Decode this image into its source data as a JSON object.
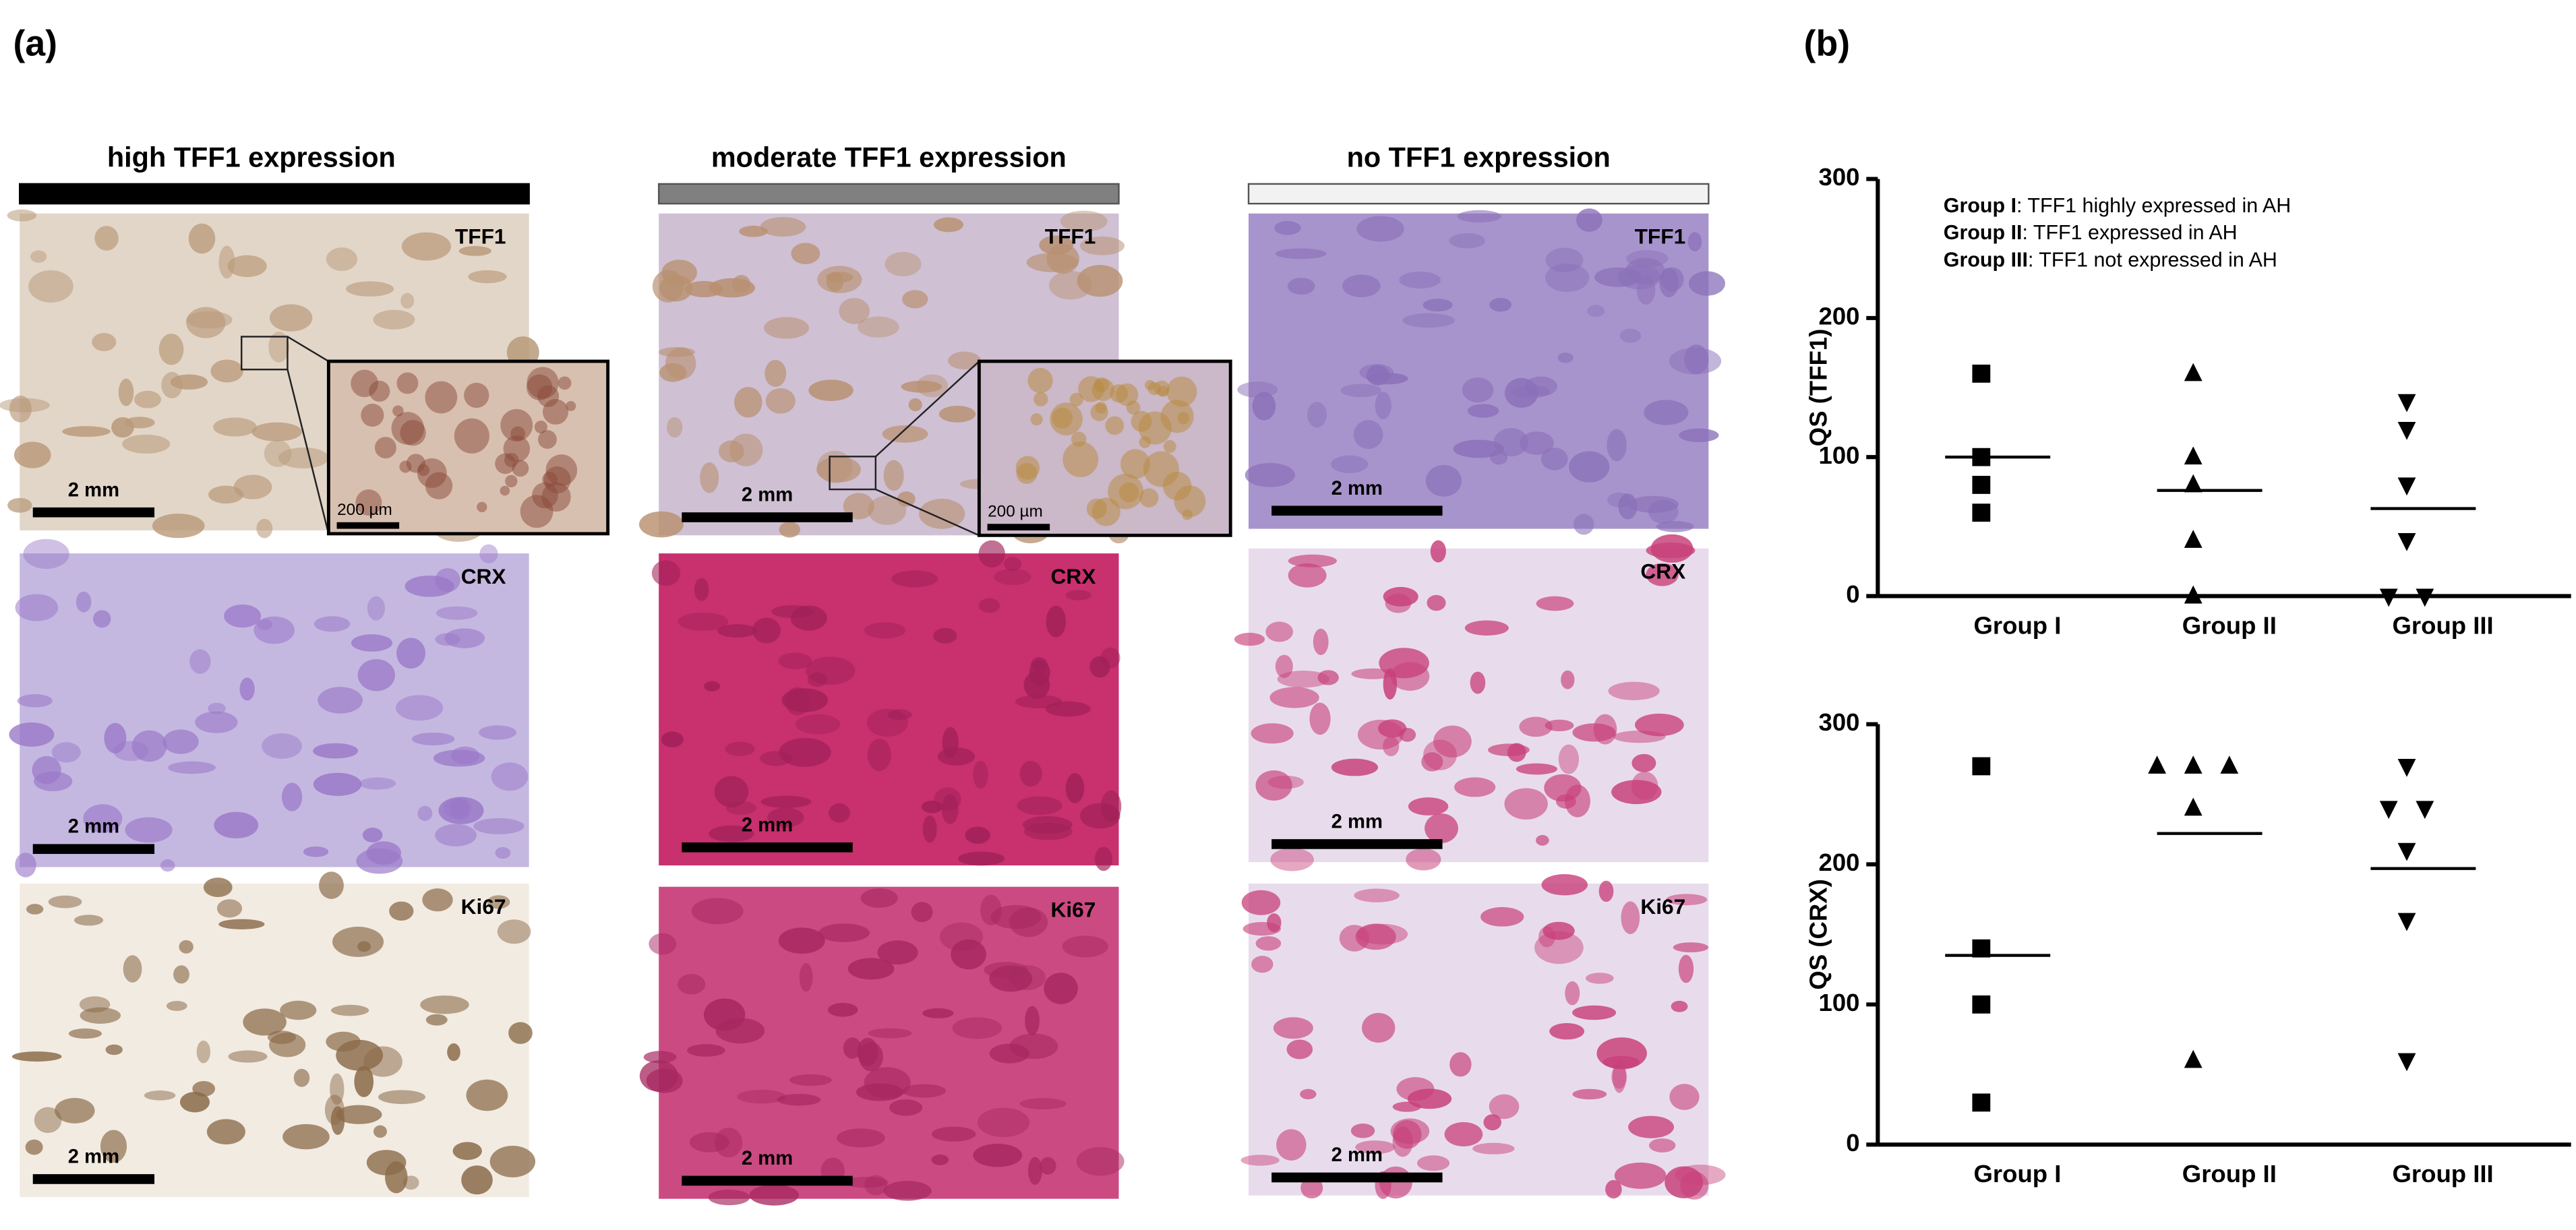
{
  "figure": {
    "panel_a": "(a)",
    "panel_b": "(b)",
    "columns": [
      {
        "header": "high TFF1 expression",
        "panels": [
          {
            "stain": "TFF1",
            "scale": "2 mm"
          },
          {
            "stain": "CRX",
            "scale": "2 mm"
          },
          {
            "stain": "Ki67",
            "scale": "2 mm"
          }
        ],
        "inset_scale": "200 µm"
      },
      {
        "header": "moderate TFF1 expression",
        "panels": [
          {
            "stain": "TFF1",
            "scale": "2 mm"
          },
          {
            "stain": "CRX",
            "scale": "2 mm"
          },
          {
            "stain": "Ki67",
            "scale": "2 mm"
          }
        ],
        "inset_scale": "200 µm"
      },
      {
        "header": "no TFF1 expression",
        "panels": [
          {
            "stain": "TFF1",
            "scale": "2 mm"
          },
          {
            "stain": "CRX",
            "scale": "2 mm"
          },
          {
            "stain": "Ki67",
            "scale": "2 mm"
          }
        ]
      }
    ]
  },
  "chart_data": [
    {
      "type": "scatter",
      "ylabel": "QS (TFF1)",
      "categories": [
        "Group I",
        "Group II",
        "Group III"
      ],
      "points": [
        [
          160,
          100,
          80,
          60
        ],
        [
          160,
          100,
          80,
          40,
          0
        ],
        [
          140,
          120,
          80,
          40,
          0,
          0
        ]
      ],
      "means": [
        100,
        76,
        63
      ],
      "markers": [
        "square",
        "triangle-up",
        "triangle-down"
      ],
      "color": "#000000",
      "ylim": [
        0,
        300
      ],
      "yticks": [
        0,
        100,
        200,
        300
      ],
      "annotations": [
        {
          "bold": "Group I",
          "text": ": TFF1 highly expressed in AH"
        },
        {
          "bold": "Group II",
          "text": ": TFF1 expressed in AH"
        },
        {
          "bold": "Group III",
          "text": ": TFF1 not expressed in AH"
        }
      ]
    },
    {
      "type": "scatter",
      "ylabel": "QS (CRX)",
      "categories": [
        "Group I",
        "Group II",
        "Group III"
      ],
      "points": [
        [
          270,
          140,
          100,
          30
        ],
        [
          270,
          270,
          270,
          240,
          60
        ],
        [
          270,
          240,
          240,
          210,
          160,
          60
        ]
      ],
      "means": [
        135,
        222,
        197
      ],
      "markers": [
        "square",
        "triangle-up",
        "triangle-down"
      ],
      "color": "#000000",
      "ylim": [
        0,
        300
      ],
      "yticks": [
        0,
        100,
        200,
        300
      ]
    }
  ]
}
